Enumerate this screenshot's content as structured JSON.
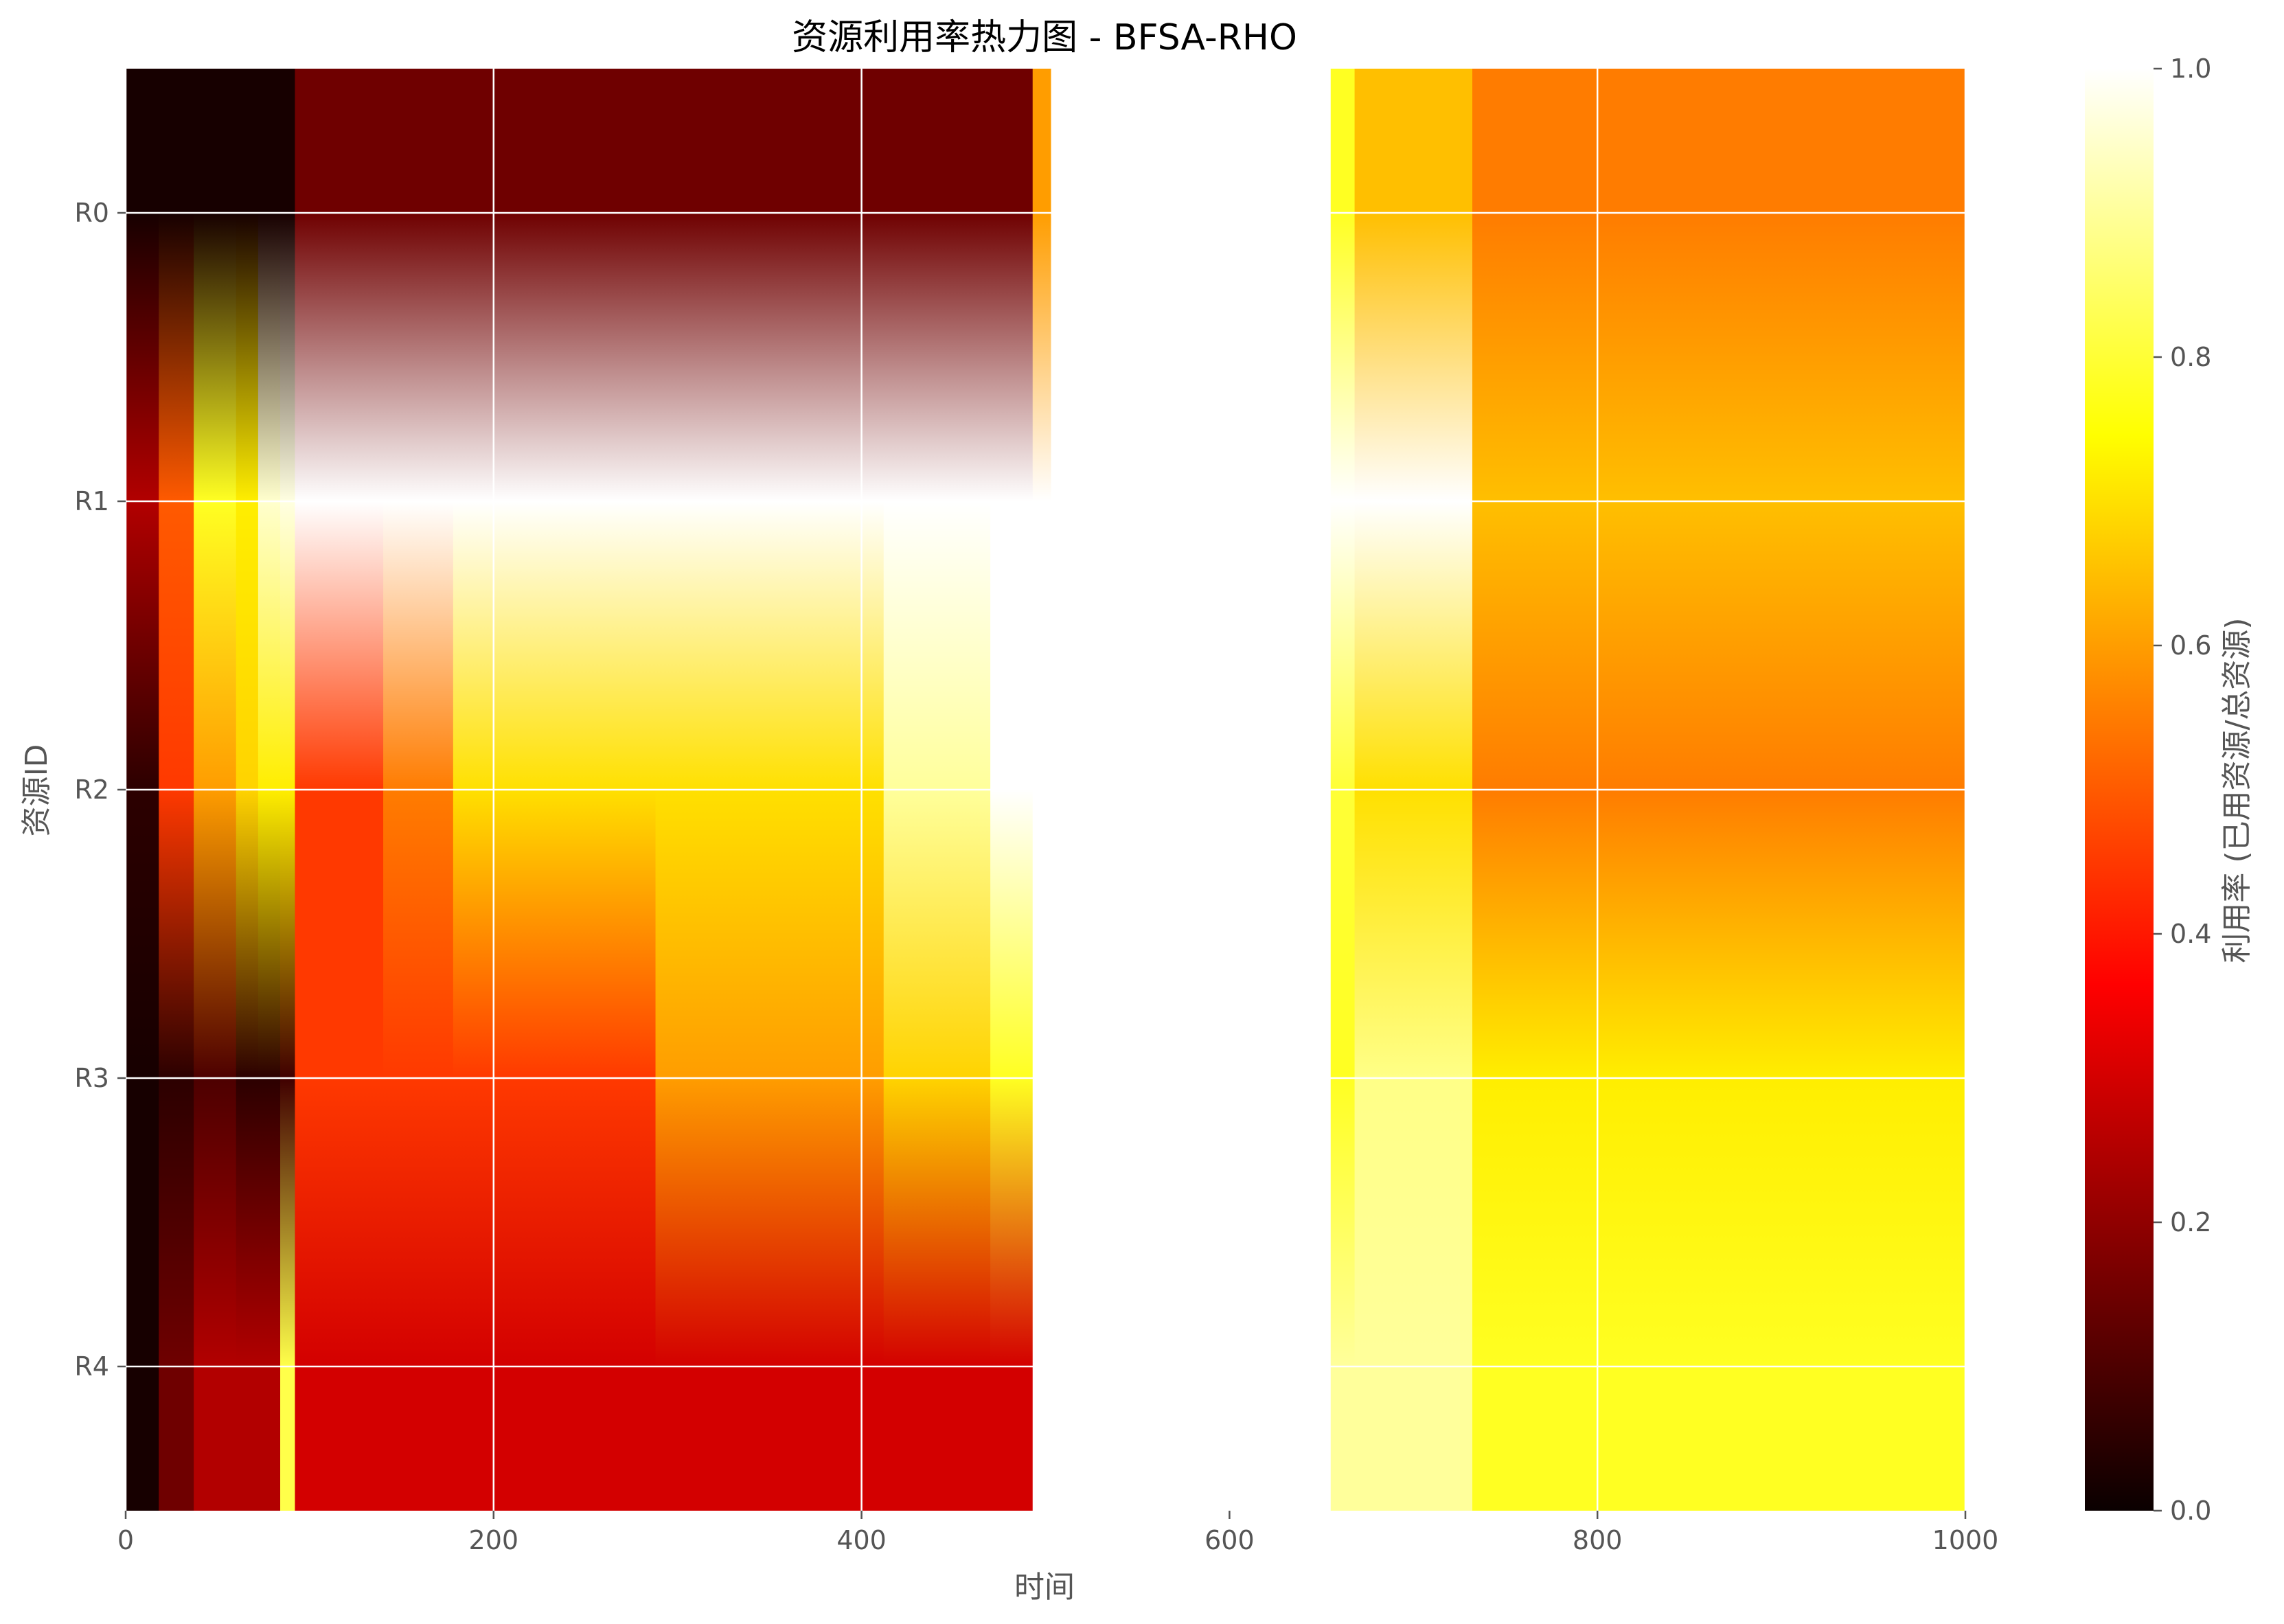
{
  "chart_data": {
    "type": "heatmap",
    "title": "资源利用率热力图 - BFSA-RHO",
    "xlabel": "时间",
    "ylabel": "资源ID",
    "colorbar_label": "利用率 (已用资源/总资源)",
    "colormap": "hot",
    "xlim": [
      0,
      1000
    ],
    "ylim": [
      -0.5,
      4.5
    ],
    "clim": [
      0,
      1
    ],
    "xticks": [
      0,
      200,
      400,
      600,
      800,
      1000
    ],
    "colorbar_ticks": [
      0.0,
      0.2,
      0.4,
      0.6,
      0.8,
      1.0
    ],
    "colorbar_tick_labels": [
      "0.0",
      "0.2",
      "0.4",
      "0.6",
      "0.8",
      "1.0"
    ],
    "rows": [
      "R0",
      "R1",
      "R2",
      "R3",
      "R4"
    ],
    "grid": true,
    "segments": [
      {
        "x_start": 0,
        "x_end": 18,
        "values": [
          0.02,
          0.25,
          0.05,
          0.02,
          0.02
        ]
      },
      {
        "x_start": 18,
        "x_end": 37,
        "values": [
          0.02,
          0.5,
          0.45,
          0.05,
          0.15
        ]
      },
      {
        "x_start": 37,
        "x_end": 60,
        "values": [
          0.02,
          0.78,
          0.6,
          0.1,
          0.25
        ]
      },
      {
        "x_start": 60,
        "x_end": 72,
        "values": [
          0.02,
          0.72,
          0.68,
          0.05,
          0.25
        ]
      },
      {
        "x_start": 72,
        "x_end": 84,
        "values": [
          0.02,
          0.95,
          0.72,
          0.05,
          0.25
        ]
      },
      {
        "x_start": 84,
        "x_end": 92,
        "values": [
          0.02,
          0.97,
          0.72,
          0.08,
          0.82
        ]
      },
      {
        "x_start": 92,
        "x_end": 140,
        "values": [
          0.15,
          1.0,
          0.45,
          0.45,
          0.3
        ]
      },
      {
        "x_start": 140,
        "x_end": 178,
        "values": [
          0.15,
          1.0,
          0.55,
          0.45,
          0.3
        ]
      },
      {
        "x_start": 178,
        "x_end": 288,
        "values": [
          0.15,
          1.0,
          0.7,
          0.45,
          0.3
        ]
      },
      {
        "x_start": 288,
        "x_end": 412,
        "values": [
          0.15,
          1.0,
          0.7,
          0.6,
          0.3
        ]
      },
      {
        "x_start": 412,
        "x_end": 470,
        "values": [
          0.15,
          1.0,
          0.9,
          0.68,
          0.3
        ]
      },
      {
        "x_start": 470,
        "x_end": 493,
        "values": [
          0.15,
          1.0,
          1.0,
          0.78,
          0.3
        ]
      },
      {
        "x_start": 493,
        "x_end": 503,
        "values": [
          0.6,
          1.0,
          1.0,
          1.0,
          1.0
        ]
      },
      {
        "x_start": 503,
        "x_end": 655,
        "values": [
          1.0,
          1.0,
          1.0,
          1.0,
          1.0
        ]
      },
      {
        "x_start": 655,
        "x_end": 668,
        "values": [
          0.78,
          1.0,
          0.8,
          0.78,
          0.9
        ]
      },
      {
        "x_start": 668,
        "x_end": 732,
        "values": [
          0.65,
          1.0,
          0.7,
          0.88,
          0.9
        ]
      },
      {
        "x_start": 732,
        "x_end": 1000,
        "values": [
          0.55,
          0.65,
          0.55,
          0.72,
          0.78
        ]
      }
    ]
  }
}
